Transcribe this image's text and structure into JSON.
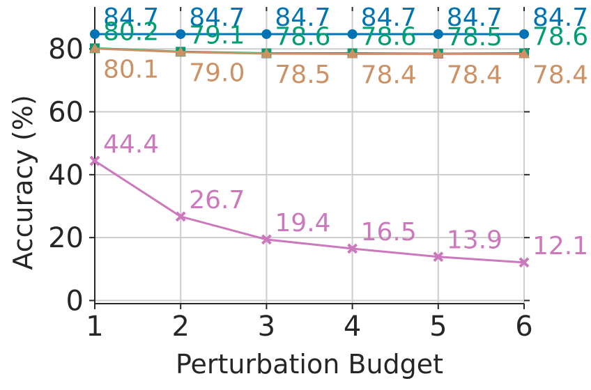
{
  "chart_data": {
    "type": "line",
    "title": "",
    "xlabel": "Perturbation Budget",
    "ylabel": "Accuracy (%)",
    "x": [
      1,
      2,
      3,
      4,
      5,
      6
    ],
    "xlim": [
      1,
      6
    ],
    "ylim": [
      -1,
      92
    ],
    "xticks": [
      "1",
      "2",
      "3",
      "4",
      "5",
      "6"
    ],
    "yticks": [
      "0",
      "20",
      "40",
      "60",
      "80"
    ],
    "grid": true,
    "legend": "none",
    "series": [
      {
        "color": "#0173b2",
        "marker": "circle",
        "label_pos": "above",
        "values": [
          84.7,
          84.7,
          84.7,
          84.7,
          84.7,
          84.7
        ],
        "labels": [
          "84.7",
          "84.7",
          "84.7",
          "84.7",
          "84.7",
          "84.7"
        ]
      },
      {
        "color": "#029e73",
        "marker": "square",
        "label_pos": "above",
        "values": [
          80.2,
          79.1,
          78.6,
          78.6,
          78.5,
          78.6
        ],
        "labels": [
          "80.2",
          "79.1",
          "78.6",
          "78.6",
          "78.5",
          "78.6"
        ]
      },
      {
        "color": "#cc9165",
        "marker": "triangle",
        "label_pos": "below",
        "values": [
          80.1,
          79.0,
          78.5,
          78.4,
          78.4,
          78.4
        ],
        "labels": [
          "80.1",
          "79.0",
          "78.5",
          "78.4",
          "78.4",
          "78.4"
        ]
      },
      {
        "color": "#cc78bc",
        "marker": "x",
        "label_pos": "above",
        "values": [
          44.4,
          26.7,
          19.4,
          16.5,
          13.9,
          12.1
        ],
        "labels": [
          "44.4",
          "26.7",
          "19.4",
          "16.5",
          "13.9",
          "12.1"
        ]
      }
    ]
  }
}
